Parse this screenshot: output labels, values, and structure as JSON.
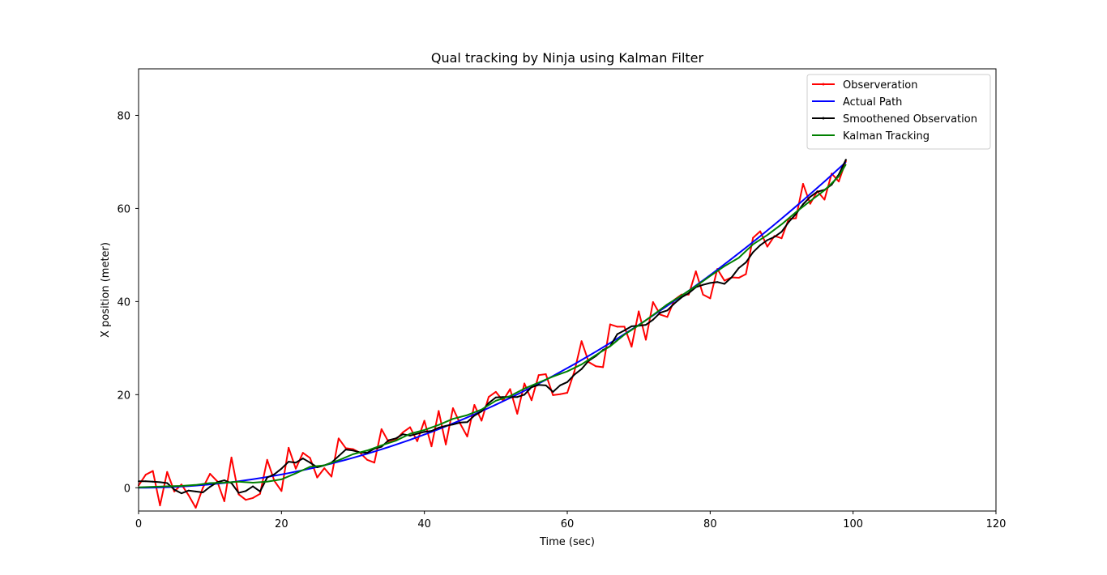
{
  "chart_data": {
    "type": "line",
    "title": "Qual tracking by Ninja using Kalman Filter",
    "xlabel": "Time (sec)",
    "ylabel": "X position (meter)",
    "xlim": [
      0,
      120
    ],
    "ylim": [
      -5,
      90
    ],
    "xticks": [
      0,
      20,
      40,
      60,
      80,
      100,
      120
    ],
    "yticks": [
      0,
      20,
      40,
      60,
      80
    ],
    "grid": false,
    "legend_position": "top-right",
    "series": [
      {
        "name": "Observeration",
        "color": "#ff0000",
        "marker": "dot",
        "points": [
          [
            0,
            0.5
          ],
          [
            1,
            2.8
          ],
          [
            2,
            3.6
          ],
          [
            3,
            -3.8
          ],
          [
            4,
            3.4
          ],
          [
            5,
            -0.8
          ],
          [
            6,
            0.7
          ],
          [
            7,
            -1.6
          ],
          [
            8,
            -4.3
          ],
          [
            9,
            0.0
          ],
          [
            10,
            3.0
          ],
          [
            11,
            1.4
          ],
          [
            12,
            -2.9
          ],
          [
            13,
            6.5
          ],
          [
            14,
            -1.4
          ],
          [
            15,
            -2.6
          ],
          [
            16,
            -2.2
          ],
          [
            17,
            -1.3
          ],
          [
            18,
            6.0
          ],
          [
            19,
            1.5
          ],
          [
            20,
            -0.7
          ],
          [
            21,
            8.6
          ],
          [
            22,
            4.1
          ],
          [
            23,
            7.5
          ],
          [
            24,
            6.4
          ],
          [
            25,
            2.2
          ],
          [
            26,
            4.2
          ],
          [
            27,
            2.4
          ],
          [
            28,
            10.6
          ],
          [
            29,
            8.5
          ],
          [
            30,
            8.3
          ],
          [
            31,
            7.5
          ],
          [
            32,
            6.0
          ],
          [
            33,
            5.4
          ],
          [
            34,
            12.6
          ],
          [
            35,
            9.8
          ],
          [
            36,
            10.3
          ],
          [
            37,
            11.9
          ],
          [
            38,
            13.0
          ],
          [
            39,
            10.0
          ],
          [
            40,
            14.4
          ],
          [
            41,
            8.9
          ],
          [
            42,
            16.5
          ],
          [
            43,
            9.3
          ],
          [
            44,
            17.1
          ],
          [
            45,
            13.8
          ],
          [
            46,
            11.0
          ],
          [
            47,
            17.8
          ],
          [
            48,
            14.4
          ],
          [
            49,
            19.5
          ],
          [
            50,
            20.6
          ],
          [
            51,
            18.7
          ],
          [
            52,
            21.2
          ],
          [
            53,
            15.9
          ],
          [
            54,
            22.4
          ],
          [
            55,
            18.8
          ],
          [
            56,
            24.2
          ],
          [
            57,
            24.4
          ],
          [
            58,
            19.9
          ],
          [
            59,
            20.1
          ],
          [
            60,
            20.4
          ],
          [
            61,
            25.0
          ],
          [
            62,
            31.5
          ],
          [
            63,
            27.0
          ],
          [
            64,
            26.1
          ],
          [
            65,
            25.9
          ],
          [
            66,
            35.1
          ],
          [
            67,
            34.6
          ],
          [
            68,
            34.6
          ],
          [
            69,
            30.3
          ],
          [
            70,
            37.9
          ],
          [
            71,
            31.8
          ],
          [
            72,
            39.9
          ],
          [
            73,
            37.2
          ],
          [
            74,
            36.7
          ],
          [
            75,
            40.4
          ],
          [
            76,
            41.5
          ],
          [
            77,
            41.5
          ],
          [
            78,
            46.5
          ],
          [
            79,
            41.5
          ],
          [
            80,
            40.7
          ],
          [
            81,
            47.0
          ],
          [
            82,
            44.5
          ],
          [
            83,
            45.2
          ],
          [
            84,
            45.1
          ],
          [
            85,
            45.9
          ],
          [
            86,
            53.7
          ],
          [
            87,
            55.1
          ],
          [
            88,
            51.8
          ],
          [
            89,
            54.1
          ],
          [
            90,
            53.6
          ],
          [
            91,
            57.8
          ],
          [
            92,
            57.9
          ],
          [
            93,
            65.3
          ],
          [
            94,
            61.0
          ],
          [
            95,
            63.7
          ],
          [
            96,
            61.9
          ],
          [
            97,
            67.5
          ],
          [
            98,
            65.8
          ],
          [
            99,
            70.2
          ]
        ]
      },
      {
        "name": "Actual Path",
        "color": "#0000ff",
        "marker": "none",
        "curve": {
          "a": 0.00714,
          "b": 0,
          "c": 0,
          "x_from": 0,
          "x_to": 99,
          "step": 1
        }
      },
      {
        "name": "Smoothened Observation",
        "color": "#000000",
        "marker": "dot",
        "points": [
          [
            0,
            1.4
          ],
          [
            1,
            1.4
          ],
          [
            2,
            1.3
          ],
          [
            3,
            1.2
          ],
          [
            4,
            1.0
          ],
          [
            5,
            -0.4
          ],
          [
            6,
            -1.2
          ],
          [
            7,
            -0.6
          ],
          [
            8,
            -0.8
          ],
          [
            9,
            -1.0
          ],
          [
            10,
            0.2
          ],
          [
            11,
            1.2
          ],
          [
            12,
            1.6
          ],
          [
            13,
            1.0
          ],
          [
            14,
            -1.1
          ],
          [
            15,
            -0.7
          ],
          [
            16,
            0.3
          ],
          [
            17,
            -0.8
          ],
          [
            18,
            2.2
          ],
          [
            19,
            2.9
          ],
          [
            20,
            4.1
          ],
          [
            21,
            5.6
          ],
          [
            22,
            5.4
          ],
          [
            23,
            6.3
          ],
          [
            24,
            5.4
          ],
          [
            25,
            4.4
          ],
          [
            26,
            4.8
          ],
          [
            27,
            5.4
          ],
          [
            28,
            6.8
          ],
          [
            29,
            8.2
          ],
          [
            30,
            8.0
          ],
          [
            31,
            7.6
          ],
          [
            32,
            7.5
          ],
          [
            33,
            8.4
          ],
          [
            34,
            8.8
          ],
          [
            35,
            10.2
          ],
          [
            36,
            10.6
          ],
          [
            37,
            11.5
          ],
          [
            38,
            11.2
          ],
          [
            39,
            11.6
          ],
          [
            40,
            12.0
          ],
          [
            41,
            12.2
          ],
          [
            42,
            12.9
          ],
          [
            43,
            13.3
          ],
          [
            44,
            13.6
          ],
          [
            45,
            14.0
          ],
          [
            46,
            14.1
          ],
          [
            47,
            15.5
          ],
          [
            48,
            16.4
          ],
          [
            49,
            18.2
          ],
          [
            50,
            19.4
          ],
          [
            51,
            19.5
          ],
          [
            52,
            19.5
          ],
          [
            53,
            19.5
          ],
          [
            54,
            20.0
          ],
          [
            55,
            21.6
          ],
          [
            56,
            22.1
          ],
          [
            57,
            22.0
          ],
          [
            58,
            20.6
          ],
          [
            59,
            22.0
          ],
          [
            60,
            22.7
          ],
          [
            61,
            24.3
          ],
          [
            62,
            25.5
          ],
          [
            63,
            27.3
          ],
          [
            64,
            28.3
          ],
          [
            65,
            29.6
          ],
          [
            66,
            30.4
          ],
          [
            67,
            33.0
          ],
          [
            68,
            33.8
          ],
          [
            69,
            34.7
          ],
          [
            70,
            34.8
          ],
          [
            71,
            35.0
          ],
          [
            72,
            36.1
          ],
          [
            73,
            37.6
          ],
          [
            74,
            38.1
          ],
          [
            75,
            39.6
          ],
          [
            76,
            40.9
          ],
          [
            77,
            41.8
          ],
          [
            78,
            43.1
          ],
          [
            79,
            43.6
          ],
          [
            80,
            44.0
          ],
          [
            81,
            44.2
          ],
          [
            82,
            43.8
          ],
          [
            83,
            45.2
          ],
          [
            84,
            47.2
          ],
          [
            85,
            48.4
          ],
          [
            86,
            50.6
          ],
          [
            87,
            52.1
          ],
          [
            88,
            53.2
          ],
          [
            89,
            53.9
          ],
          [
            90,
            55.0
          ],
          [
            91,
            57.1
          ],
          [
            92,
            58.8
          ],
          [
            93,
            60.9
          ],
          [
            94,
            62.5
          ],
          [
            95,
            63.6
          ],
          [
            96,
            64.0
          ],
          [
            97,
            65.1
          ],
          [
            98,
            67.3
          ],
          [
            99,
            70.5
          ]
        ]
      },
      {
        "name": "Kalman Tracking",
        "color": "#008000",
        "marker": "none",
        "points": [
          [
            0,
            0.1
          ],
          [
            2,
            0.2
          ],
          [
            4,
            0.3
          ],
          [
            6,
            0.4
          ],
          [
            8,
            0.6
          ],
          [
            10,
            1.0
          ],
          [
            12,
            1.1
          ],
          [
            14,
            1.3
          ],
          [
            16,
            1.1
          ],
          [
            18,
            1.3
          ],
          [
            20,
            1.8
          ],
          [
            22,
            3.1
          ],
          [
            24,
            4.5
          ],
          [
            26,
            4.8
          ],
          [
            28,
            5.9
          ],
          [
            30,
            7.2
          ],
          [
            32,
            8.0
          ],
          [
            34,
            9.1
          ],
          [
            36,
            10.1
          ],
          [
            38,
            11.6
          ],
          [
            40,
            12.4
          ],
          [
            42,
            13.5
          ],
          [
            44,
            14.8
          ],
          [
            46,
            15.6
          ],
          [
            48,
            16.8
          ],
          [
            50,
            18.7
          ],
          [
            52,
            19.7
          ],
          [
            54,
            21.3
          ],
          [
            56,
            22.6
          ],
          [
            58,
            23.9
          ],
          [
            60,
            25.0
          ],
          [
            62,
            26.5
          ],
          [
            64,
            28.5
          ],
          [
            66,
            30.4
          ],
          [
            68,
            32.9
          ],
          [
            70,
            34.9
          ],
          [
            72,
            37.1
          ],
          [
            74,
            39.4
          ],
          [
            76,
            41.3
          ],
          [
            78,
            43.3
          ],
          [
            80,
            45.5
          ],
          [
            82,
            47.6
          ],
          [
            84,
            49.4
          ],
          [
            86,
            52.3
          ],
          [
            88,
            54.3
          ],
          [
            90,
            56.6
          ],
          [
            92,
            59.2
          ],
          [
            94,
            61.6
          ],
          [
            96,
            63.9
          ],
          [
            98,
            66.9
          ],
          [
            99,
            69.5
          ]
        ]
      }
    ]
  }
}
